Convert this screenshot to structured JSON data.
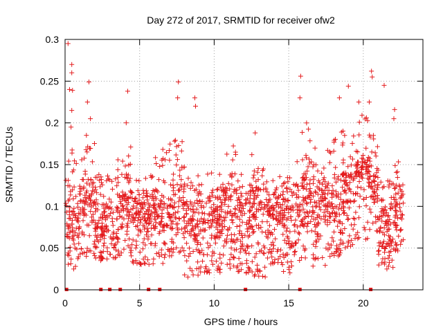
{
  "chart_data": {
    "type": "scatter",
    "title": "Day 272 of 2017, SRMTID for receiver ofw2",
    "xlabel": "GPS time / hours",
    "ylabel": "SRMTID / TECUs",
    "xlim": [
      0,
      24
    ],
    "ylim": [
      0,
      0.3
    ],
    "xticks": [
      {
        "value": 0,
        "label": "0"
      },
      {
        "value": 5,
        "label": "5"
      },
      {
        "value": 10,
        "label": "10"
      },
      {
        "value": 15,
        "label": "15"
      },
      {
        "value": 20,
        "label": "20"
      }
    ],
    "yticks": [
      {
        "value": 0,
        "label": "0"
      },
      {
        "value": 0.05,
        "label": "0.05"
      },
      {
        "value": 0.1,
        "label": "0.1"
      },
      {
        "value": 0.15,
        "label": "0.15"
      },
      {
        "value": 0.2,
        "label": "0.2"
      },
      {
        "value": 0.25,
        "label": "0.25"
      },
      {
        "value": 0.3,
        "label": "0.3"
      }
    ],
    "grid": true,
    "marker": "+",
    "marker_color": "#e41a1c",
    "x_time_range": [
      0.05,
      22.7
    ],
    "typical_band": [
      0.03,
      0.15
    ],
    "peak_points": [
      {
        "x": 0.2,
        "y": 0.295
      },
      {
        "x": 0.45,
        "y": 0.27
      },
      {
        "x": 0.45,
        "y": 0.26
      },
      {
        "x": 0.3,
        "y": 0.24
      },
      {
        "x": 0.5,
        "y": 0.239
      },
      {
        "x": 0.45,
        "y": 0.215
      },
      {
        "x": 0.4,
        "y": 0.195
      },
      {
        "x": 1.6,
        "y": 0.249
      },
      {
        "x": 1.5,
        "y": 0.225
      },
      {
        "x": 1.7,
        "y": 0.205
      },
      {
        "x": 4.2,
        "y": 0.238
      },
      {
        "x": 4.1,
        "y": 0.2
      },
      {
        "x": 7.6,
        "y": 0.249
      },
      {
        "x": 7.55,
        "y": 0.23
      },
      {
        "x": 8.7,
        "y": 0.23
      },
      {
        "x": 8.75,
        "y": 0.22
      },
      {
        "x": 12.75,
        "y": 0.188
      },
      {
        "x": 15.8,
        "y": 0.256
      },
      {
        "x": 15.75,
        "y": 0.23
      },
      {
        "x": 19.0,
        "y": 0.244
      },
      {
        "x": 18.4,
        "y": 0.23
      },
      {
        "x": 19.7,
        "y": 0.225
      },
      {
        "x": 20.55,
        "y": 0.262
      },
      {
        "x": 20.6,
        "y": 0.255
      },
      {
        "x": 20.4,
        "y": 0.225
      },
      {
        "x": 21.4,
        "y": 0.245
      },
      {
        "x": 22.1,
        "y": 0.216
      },
      {
        "x": 22.05,
        "y": 0.205
      }
    ],
    "zero_points": [
      {
        "x": 0.1,
        "y": 0
      },
      {
        "x": 2.4,
        "y": 0
      },
      {
        "x": 3.0,
        "y": 0
      },
      {
        "x": 3.7,
        "y": 0
      },
      {
        "x": 5.6,
        "y": 0
      },
      {
        "x": 6.35,
        "y": 0
      },
      {
        "x": 12.1,
        "y": 0
      },
      {
        "x": 15.75,
        "y": 0
      },
      {
        "x": 20.5,
        "y": 0
      }
    ],
    "dense_segments": [
      {
        "x_start": 0.05,
        "x_end": 1.0,
        "y_low": 0.025,
        "y_high": 0.17
      },
      {
        "x_start": 1.0,
        "y_low": 0.04,
        "x_end": 2.0,
        "y_high": 0.19
      },
      {
        "x_start": 2.0,
        "x_end": 3.5,
        "y_low": 0.035,
        "y_high": 0.14
      },
      {
        "x_start": 3.5,
        "x_end": 4.5,
        "y_low": 0.04,
        "y_high": 0.175
      },
      {
        "x_start": 4.5,
        "x_end": 6.0,
        "y_low": 0.03,
        "y_high": 0.14
      },
      {
        "x_start": 6.0,
        "x_end": 7.0,
        "y_low": 0.03,
        "y_high": 0.17
      },
      {
        "x_start": 7.0,
        "x_end": 8.0,
        "y_low": 0.04,
        "y_high": 0.18
      },
      {
        "x_start": 8.0,
        "x_end": 9.0,
        "y_low": 0.015,
        "y_high": 0.15
      },
      {
        "x_start": 9.0,
        "x_end": 10.5,
        "y_low": 0.02,
        "y_high": 0.14
      },
      {
        "x_start": 10.5,
        "x_end": 11.5,
        "y_low": 0.025,
        "y_high": 0.175
      },
      {
        "x_start": 11.5,
        "x_end": 12.5,
        "y_low": 0.02,
        "y_high": 0.14
      },
      {
        "x_start": 12.5,
        "x_end": 13.5,
        "y_low": 0.015,
        "y_high": 0.165
      },
      {
        "x_start": 13.5,
        "x_end": 14.5,
        "y_low": 0.03,
        "y_high": 0.14
      },
      {
        "x_start": 14.5,
        "x_end": 15.5,
        "y_low": 0.02,
        "y_high": 0.135
      },
      {
        "x_start": 15.5,
        "x_end": 16.5,
        "y_low": 0.035,
        "y_high": 0.2
      },
      {
        "x_start": 16.5,
        "x_end": 17.5,
        "y_low": 0.025,
        "y_high": 0.17
      },
      {
        "x_start": 17.5,
        "x_end": 18.5,
        "y_low": 0.04,
        "y_high": 0.185
      },
      {
        "x_start": 18.5,
        "x_end": 19.5,
        "y_low": 0.05,
        "y_high": 0.2
      },
      {
        "x_start": 19.5,
        "x_end": 20.5,
        "y_low": 0.06,
        "y_high": 0.21
      },
      {
        "x_start": 20.5,
        "x_end": 21.0,
        "y_low": 0.07,
        "y_high": 0.2
      },
      {
        "x_start": 21.0,
        "x_end": 22.0,
        "y_low": 0.025,
        "y_high": 0.15
      },
      {
        "x_start": 22.0,
        "x_end": 22.7,
        "y_low": 0.045,
        "y_high": 0.155
      }
    ]
  }
}
